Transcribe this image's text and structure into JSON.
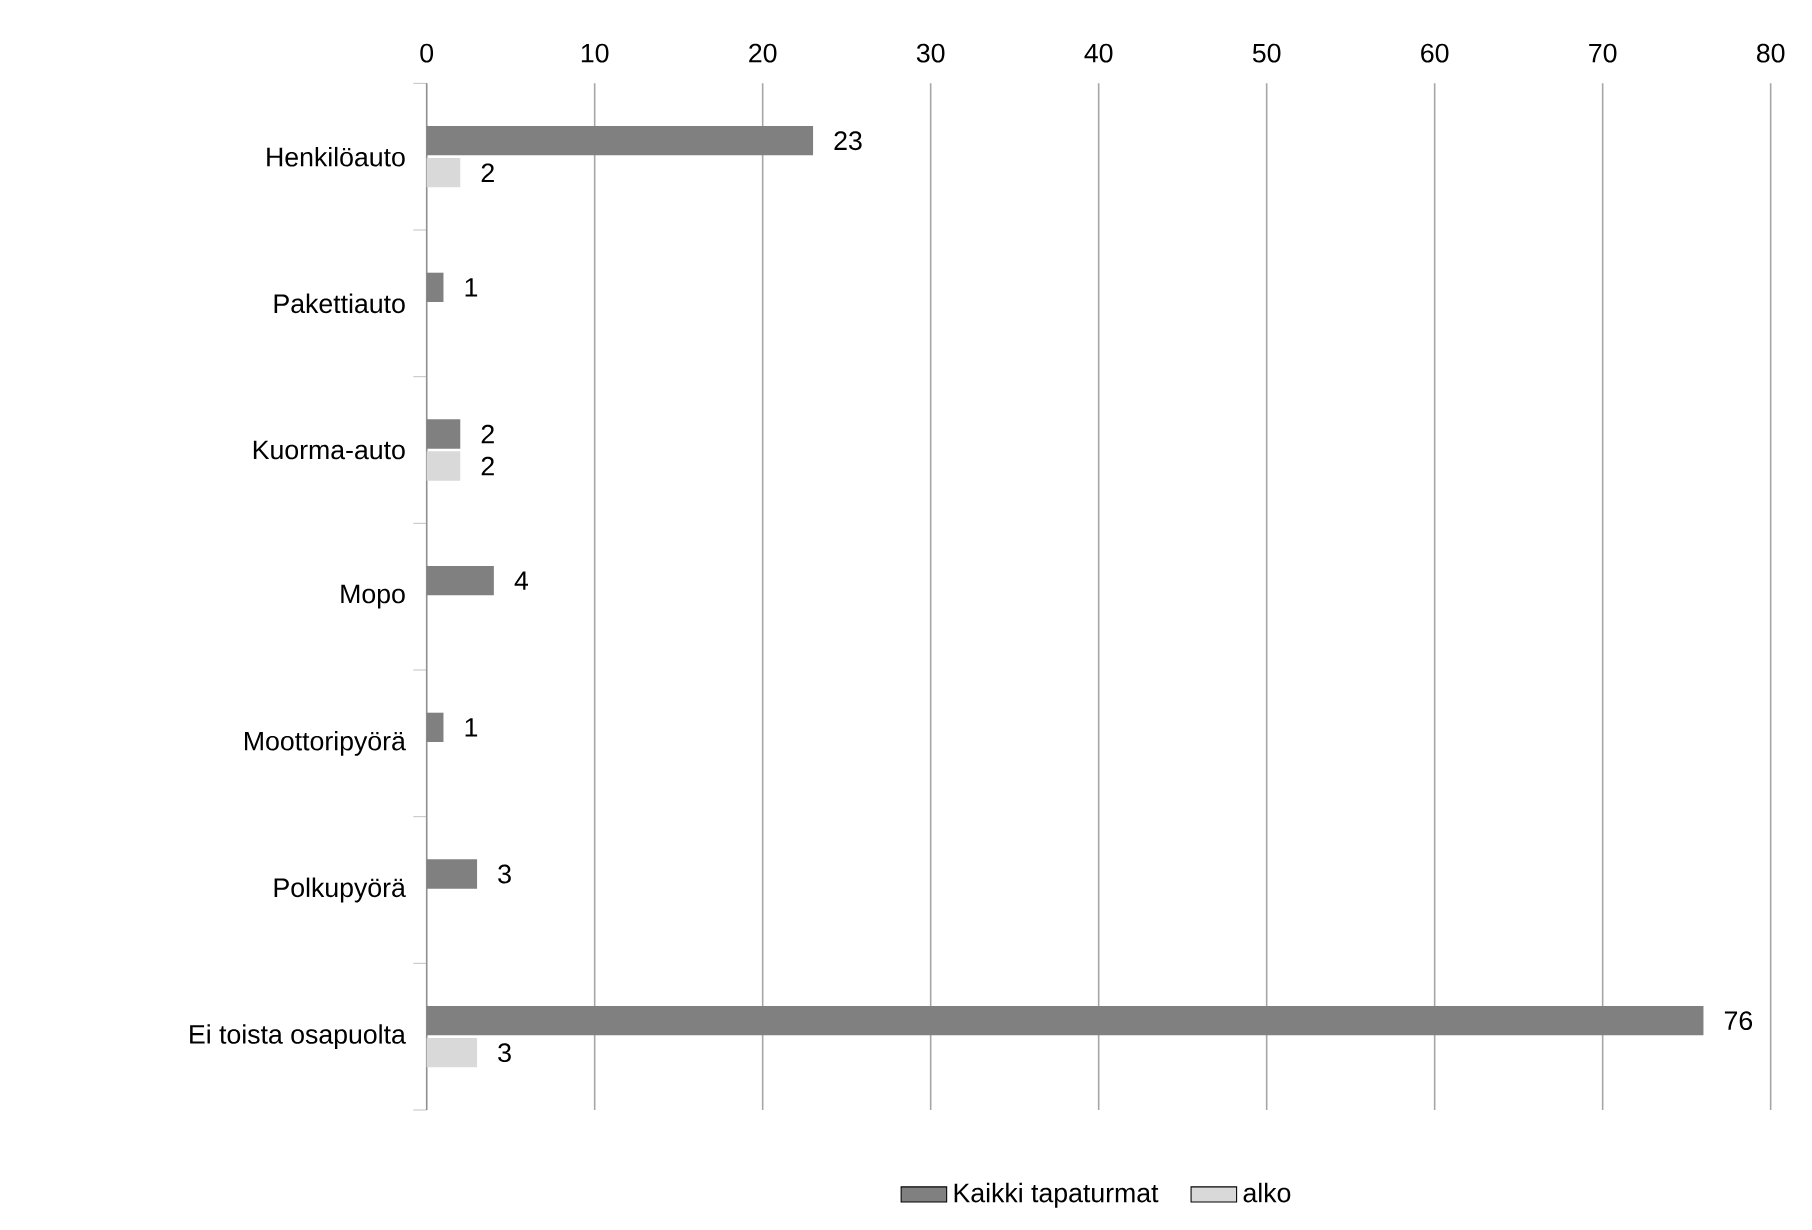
{
  "chart_data": {
    "type": "bar",
    "orientation": "horizontal",
    "categories": [
      "Henkilöauto",
      "Pakettiauto",
      "Kuorma-auto",
      "Mopo",
      "Moottoripyörä",
      "Polkupyörä",
      "Ei toista osapuolta"
    ],
    "series": [
      {
        "name": "Kaikki tapaturmat",
        "color": "#808080",
        "values": [
          23,
          1,
          2,
          4,
          1,
          3,
          76
        ]
      },
      {
        "name": "alko",
        "color": "#d9d9d9",
        "values": [
          2,
          null,
          2,
          null,
          null,
          null,
          3
        ]
      }
    ],
    "xlim": [
      0,
      80
    ],
    "xticks": [
      0,
      10,
      20,
      30,
      40,
      50,
      60,
      70,
      80
    ],
    "grid": "x",
    "legend": "bottom",
    "data_labels": true
  }
}
